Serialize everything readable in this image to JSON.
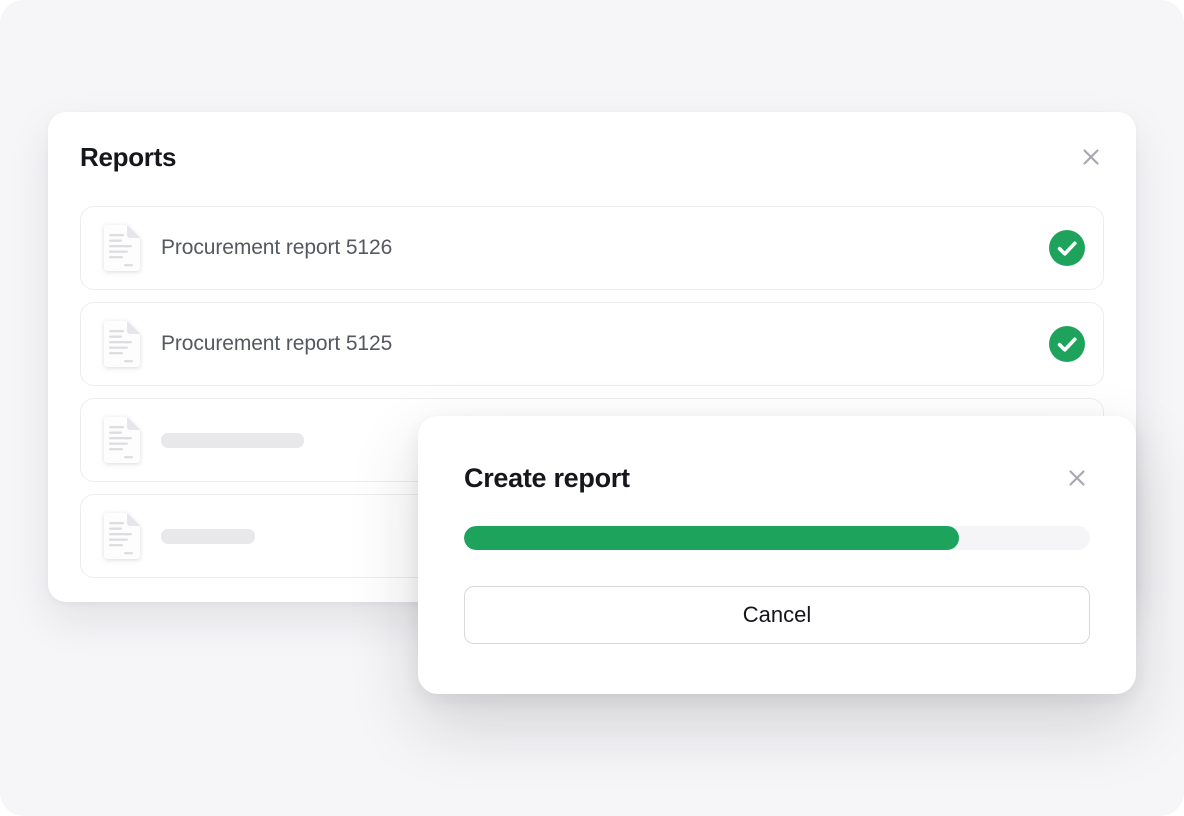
{
  "reports_panel": {
    "title": "Reports",
    "items": [
      {
        "label": "Procurement report 5126",
        "status": "complete"
      },
      {
        "label": "Procurement report 5125",
        "status": "complete"
      },
      {
        "label": "",
        "status": "loading",
        "skeleton_width": 143
      },
      {
        "label": "",
        "status": "loading",
        "skeleton_width": 94
      }
    ]
  },
  "modal": {
    "title": "Create report",
    "progress_percent": 79,
    "cancel_label": "Cancel"
  },
  "icons": {
    "panel_close": "close-icon",
    "modal_close": "close-icon",
    "report_item": "document-icon",
    "item_complete": "check-circle-icon"
  },
  "colors": {
    "accent_green": "#1EA35C",
    "canvas_background": "#F6F6F8",
    "progress_track": "#F5F5F7",
    "skeleton": "#E8E8EA",
    "row_border": "#EDEDF0",
    "title_text": "#15171C",
    "item_text": "#55585F",
    "close_icon": "#A8A8B4"
  }
}
